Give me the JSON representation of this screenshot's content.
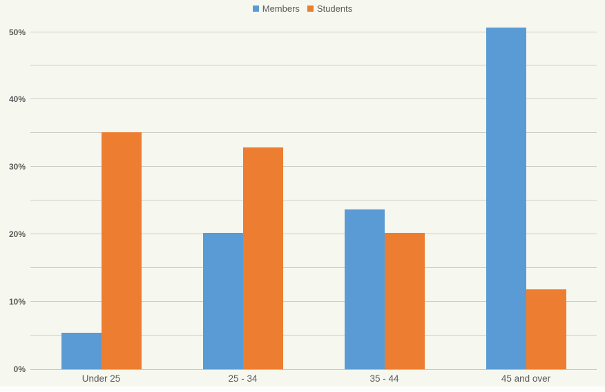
{
  "chart_data": {
    "type": "bar",
    "title": "",
    "categories": [
      "Under 25",
      "25 - 34",
      "35 - 44",
      "45 and over"
    ],
    "series": [
      {
        "name": "Members",
        "color": "#5b9bd5",
        "values": [
          5.4,
          20.2,
          23.7,
          50.7
        ]
      },
      {
        "name": "Students",
        "color": "#ed7d31",
        "values": [
          35.1,
          32.9,
          20.2,
          11.8
        ]
      }
    ],
    "xlabel": "",
    "ylabel": "",
    "y_axis": {
      "min": 0,
      "max": 52,
      "tick_step": 10,
      "gridline_step": 5,
      "tick_labels": [
        "0%",
        "10%",
        "20%",
        "30%",
        "40%",
        "50%"
      ],
      "unit": "%"
    },
    "legend_position": "top-center",
    "grid": true
  },
  "colors": {
    "background": "#f6f8ef",
    "gridline": "#cbcbc5",
    "axis_line": "#c6c6c0",
    "text": "#595959",
    "members": "#5b9bd5",
    "students": "#ed7d31"
  }
}
